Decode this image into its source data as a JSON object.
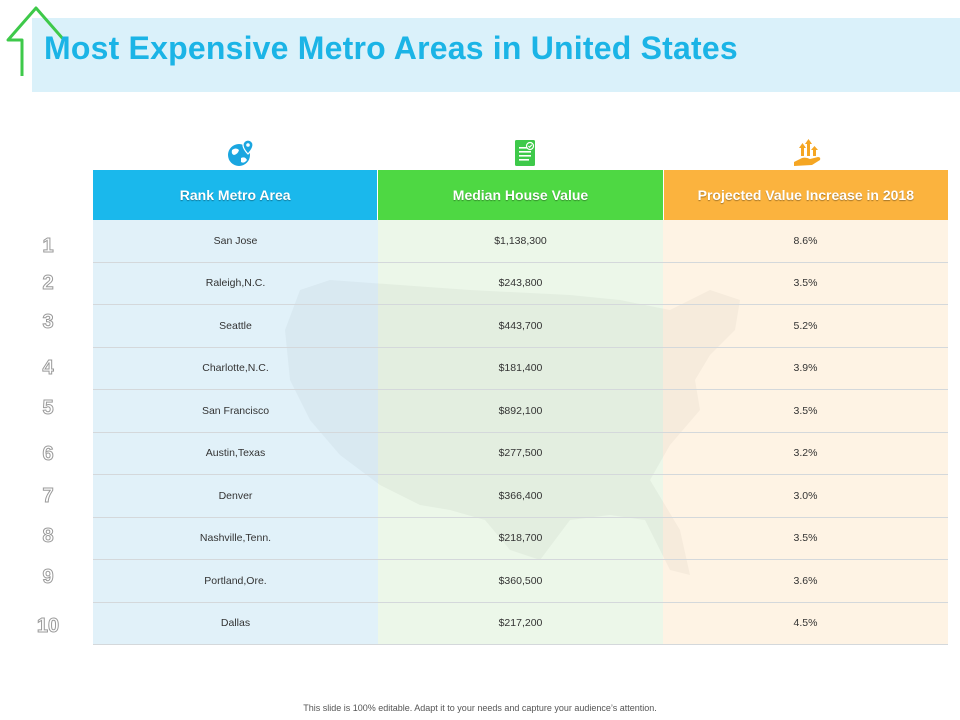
{
  "slide": {
    "title": "Most Expensive Metro Areas in United States",
    "footer": "This slide is 100% editable. Adapt it to your needs and capture your audience’s attention."
  },
  "icons": {
    "title": "house-outline-icon",
    "col1": "globe-location-icon",
    "col2": "document-check-icon",
    "col3": "hand-growth-arrows-icon"
  },
  "colors": {
    "title": "#1bb4e6",
    "col1_header": "#1ab8ec",
    "col2_header": "#4ed843",
    "col3_header": "#fbb33e"
  },
  "table": {
    "headers": [
      "Rank Metro Area",
      "Median House Value",
      "Projected Value Increase in 2018"
    ],
    "rows": [
      {
        "rank": "1",
        "metro": "San Jose",
        "value": "$1,138,300",
        "increase": "8.6%"
      },
      {
        "rank": "2",
        "metro": "Raleigh,N.C.",
        "value": "$243,800",
        "increase": "3.5%"
      },
      {
        "rank": "3",
        "metro": "Seattle",
        "value": "$443,700",
        "increase": "5.2%"
      },
      {
        "rank": "4",
        "metro": "Charlotte,N.C.",
        "value": "$181,400",
        "increase": "3.9%"
      },
      {
        "rank": "5",
        "metro": "San Francisco",
        "value": "$892,100",
        "increase": "3.5%"
      },
      {
        "rank": "6",
        "metro": "Austin,Texas",
        "value": "$277,500",
        "increase": "3.2%"
      },
      {
        "rank": "7",
        "metro": "Denver",
        "value": "$366,400",
        "increase": "3.0%"
      },
      {
        "rank": "8",
        "metro": "Nashville,Tenn.",
        "value": "$218,700",
        "increase": "3.5%"
      },
      {
        "rank": "9",
        "metro": "Portland,Ore.",
        "value": "$360,500",
        "increase": "3.6%"
      },
      {
        "rank": "10",
        "metro": "Dallas",
        "value": "$217,200",
        "increase": "4.5%"
      }
    ]
  }
}
